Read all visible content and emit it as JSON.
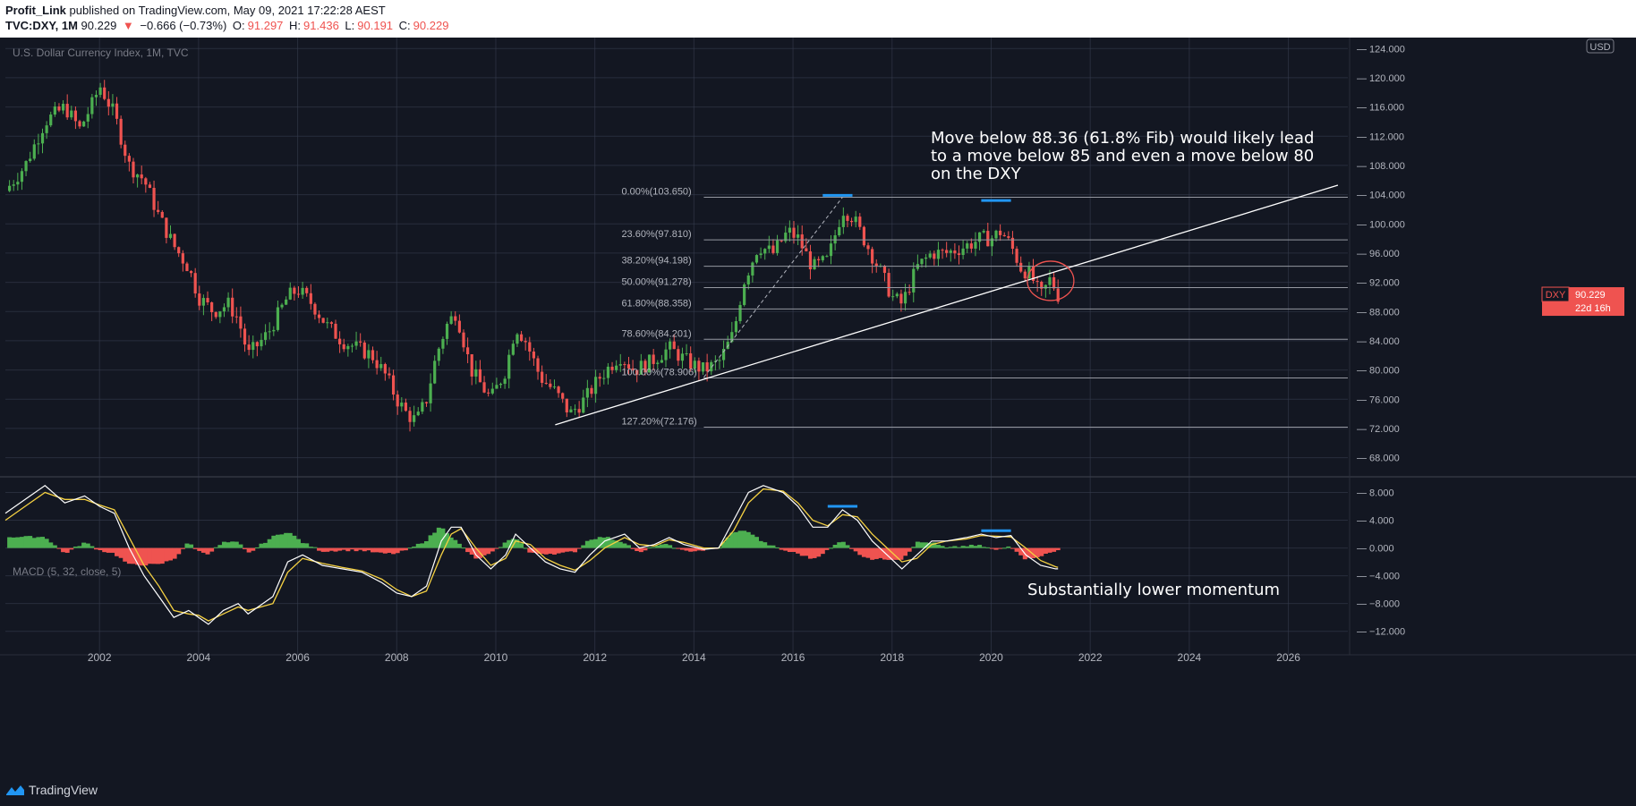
{
  "header": {
    "author": "Profit_Link",
    "published_text": "published on TradingView.com, May 09, 2021 17:22:28 AEST",
    "symbol_line": "TVC:DXY, 1M",
    "last": "90.229",
    "change_arrow": "▼",
    "change": "−0.666 (−0.73%)",
    "o_label": "O:",
    "o_value": "91.297",
    "h_label": "H:",
    "h_value": "91.436",
    "l_label": "L:",
    "l_value": "90.191",
    "c_label": "C:",
    "c_value": "90.229"
  },
  "footer": {
    "brand": "TradingView"
  },
  "colors": {
    "background": "#131722",
    "grid": "#363c4e",
    "up": "#26a69a",
    "up_candle": "#4caf50",
    "down": "#ef5350",
    "macd_line": "#ffffff",
    "signal_line": "#f5d142",
    "annotation_blue": "#2196f3",
    "price_tag": "#ef5350"
  },
  "chart_data": [
    {
      "type": "candlestick",
      "title": "U.S. Dollar Currency Index, 1M, TVC",
      "currency_badge": "USD",
      "price_tag": {
        "symbol": "DXY",
        "value": "90.229",
        "countdown": "22d 16h"
      },
      "x_ticks": [
        "2002",
        "2004",
        "2006",
        "2008",
        "2010",
        "2012",
        "2014",
        "2016",
        "2018",
        "2020",
        "2022",
        "2024",
        "2026"
      ],
      "y_ticks": [
        "124.000",
        "120.000",
        "116.000",
        "112.000",
        "108.000",
        "104.000",
        "100.000",
        "96.000",
        "92.000",
        "88.000",
        "84.000",
        "80.000",
        "76.000",
        "72.000",
        "68.000"
      ],
      "ylim": [
        65.5,
        125.5
      ],
      "xlim": [
        2000.1,
        2027.2
      ],
      "close_path": [
        [
          2000.1,
          104.5
        ],
        [
          2000.5,
          108
        ],
        [
          2000.9,
          114
        ],
        [
          2001.3,
          116
        ],
        [
          2001.6,
          113
        ],
        [
          2001.9,
          117
        ],
        [
          2002.0,
          119
        ],
        [
          2002.3,
          115
        ],
        [
          2002.6,
          108
        ],
        [
          2002.9,
          106
        ],
        [
          2003.2,
          101
        ],
        [
          2003.5,
          97
        ],
        [
          2003.8,
          94
        ],
        [
          2004.0,
          90
        ],
        [
          2004.3,
          88
        ],
        [
          2004.6,
          89
        ],
        [
          2004.8,
          87
        ],
        [
          2005.0,
          82
        ],
        [
          2005.4,
          85
        ],
        [
          2005.8,
          90
        ],
        [
          2006.0,
          91
        ],
        [
          2006.3,
          89
        ],
        [
          2006.6,
          86
        ],
        [
          2006.9,
          84
        ],
        [
          2007.2,
          83
        ],
        [
          2007.5,
          82
        ],
        [
          2007.8,
          79
        ],
        [
          2008.0,
          76
        ],
        [
          2008.2,
          74
        ],
        [
          2008.4,
          73
        ],
        [
          2008.6,
          76
        ],
        [
          2008.8,
          82
        ],
        [
          2009.0,
          86
        ],
        [
          2009.2,
          88
        ],
        [
          2009.5,
          80
        ],
        [
          2009.9,
          76
        ],
        [
          2010.2,
          80
        ],
        [
          2010.4,
          86
        ],
        [
          2010.6,
          84
        ],
        [
          2010.9,
          79
        ],
        [
          2011.2,
          77
        ],
        [
          2011.5,
          74
        ],
        [
          2011.8,
          76
        ],
        [
          2012.1,
          79
        ],
        [
          2012.5,
          82
        ],
        [
          2012.8,
          80
        ],
        [
          2013.1,
          81
        ],
        [
          2013.5,
          83
        ],
        [
          2013.9,
          81
        ],
        [
          2014.2,
          80
        ],
        [
          2014.5,
          81
        ],
        [
          2014.8,
          85
        ],
        [
          2015.0,
          92
        ],
        [
          2015.3,
          97
        ],
        [
          2015.6,
          96
        ],
        [
          2015.9,
          99
        ],
        [
          2016.1,
          98
        ],
        [
          2016.4,
          94
        ],
        [
          2016.7,
          95
        ],
        [
          2017.0,
          102
        ],
        [
          2017.2,
          101
        ],
        [
          2017.5,
          97
        ],
        [
          2017.8,
          93
        ],
        [
          2018.0,
          90
        ],
        [
          2018.2,
          89
        ],
        [
          2018.5,
          94
        ],
        [
          2018.8,
          96
        ],
        [
          2019.1,
          96
        ],
        [
          2019.5,
          97
        ],
        [
          2019.8,
          98
        ],
        [
          2020.0,
          98
        ],
        [
          2020.2,
          99
        ],
        [
          2020.4,
          97
        ],
        [
          2020.6,
          94
        ],
        [
          2020.8,
          93
        ],
        [
          2021.0,
          90
        ],
        [
          2021.2,
          92.5
        ],
        [
          2021.35,
          90.229
        ]
      ],
      "trendline": {
        "from": [
          2011.2,
          72.5
        ],
        "to": [
          2027.0,
          105.3
        ]
      },
      "dashed_fib_leg": {
        "from": [
          2014.2,
          79.0
        ],
        "to": [
          2017.0,
          103.65
        ]
      },
      "fib_levels": [
        {
          "label": "0.00%(103.650)",
          "value": 103.65
        },
        {
          "label": "23.60%(97.810)",
          "value": 97.81
        },
        {
          "label": "38.20%(94.198)",
          "value": 94.198
        },
        {
          "label": "50.00%(91.278)",
          "value": 91.278
        },
        {
          "label": "61.80%(88.358)",
          "value": 88.358
        },
        {
          "label": "78.60%(84.201)",
          "value": 84.201
        },
        {
          "label": "100.00%(78.906)",
          "value": 78.906
        },
        {
          "label": "127.20%(72.176)",
          "value": 72.176
        }
      ],
      "peak_markers": [
        {
          "x": [
            2016.6,
            2017.2
          ],
          "y": 103.9
        },
        {
          "x": [
            2019.8,
            2020.4
          ],
          "y": 103.2
        }
      ],
      "circle": {
        "x": 2021.2,
        "y": 92.2
      },
      "annotation": "Move below 88.36 (61.8% Fib) would likely lead\nto a move below 85 and even a move below 80\non the DXY"
    },
    {
      "type": "macd",
      "title": "MACD (5, 32, close, 5)",
      "y_ticks": [
        "8.000",
        "4.000",
        "0.000",
        "−4.000",
        "−8.000",
        "−12.000"
      ],
      "ylim": [
        -13.2,
        10.0
      ],
      "macd": [
        [
          2000.1,
          5
        ],
        [
          2000.5,
          7
        ],
        [
          2000.9,
          9
        ],
        [
          2001.3,
          6.5
        ],
        [
          2001.7,
          7.5
        ],
        [
          2002.0,
          6
        ],
        [
          2002.3,
          5
        ],
        [
          2002.6,
          0
        ],
        [
          2002.9,
          -4
        ],
        [
          2003.2,
          -7
        ],
        [
          2003.5,
          -10
        ],
        [
          2003.8,
          -9
        ],
        [
          2004.0,
          -10
        ],
        [
          2004.2,
          -11
        ],
        [
          2004.5,
          -9
        ],
        [
          2004.8,
          -8
        ],
        [
          2005.0,
          -9.5
        ],
        [
          2005.5,
          -7
        ],
        [
          2005.8,
          -2
        ],
        [
          2006.1,
          -1
        ],
        [
          2006.5,
          -2.5
        ],
        [
          2006.9,
          -3
        ],
        [
          2007.3,
          -3.5
        ],
        [
          2007.7,
          -5
        ],
        [
          2008.0,
          -6.5
        ],
        [
          2008.3,
          -7
        ],
        [
          2008.6,
          -5.5
        ],
        [
          2008.9,
          1
        ],
        [
          2009.1,
          3
        ],
        [
          2009.3,
          3
        ],
        [
          2009.6,
          -1
        ],
        [
          2009.9,
          -3
        ],
        [
          2010.2,
          -1
        ],
        [
          2010.4,
          2
        ],
        [
          2010.7,
          0
        ],
        [
          2011.0,
          -2
        ],
        [
          2011.3,
          -3
        ],
        [
          2011.6,
          -3.5
        ],
        [
          2011.9,
          -1
        ],
        [
          2012.2,
          1
        ],
        [
          2012.6,
          2
        ],
        [
          2012.9,
          0
        ],
        [
          2013.2,
          0.5
        ],
        [
          2013.5,
          1.5
        ],
        [
          2013.8,
          0.5
        ],
        [
          2014.2,
          -0.2
        ],
        [
          2014.5,
          0
        ],
        [
          2014.8,
          4
        ],
        [
          2015.1,
          8
        ],
        [
          2015.4,
          9
        ],
        [
          2015.8,
          8
        ],
        [
          2016.1,
          6
        ],
        [
          2016.4,
          3
        ],
        [
          2016.7,
          3
        ],
        [
          2017.0,
          5.5
        ],
        [
          2017.3,
          4
        ],
        [
          2017.6,
          1
        ],
        [
          2017.9,
          -1
        ],
        [
          2018.2,
          -3
        ],
        [
          2018.5,
          -1
        ],
        [
          2018.8,
          1
        ],
        [
          2019.1,
          1
        ],
        [
          2019.5,
          1.5
        ],
        [
          2019.8,
          2
        ],
        [
          2020.1,
          1.5
        ],
        [
          2020.4,
          1.8
        ],
        [
          2020.7,
          -1
        ],
        [
          2021.0,
          -2.5
        ],
        [
          2021.3,
          -3
        ],
        [
          2021.35,
          -3
        ]
      ],
      "signal": [
        [
          2000.1,
          4
        ],
        [
          2000.5,
          6
        ],
        [
          2000.9,
          8
        ],
        [
          2001.3,
          7
        ],
        [
          2001.7,
          7
        ],
        [
          2002.0,
          6.2
        ],
        [
          2002.3,
          5.5
        ],
        [
          2002.6,
          1.5
        ],
        [
          2002.9,
          -2.5
        ],
        [
          2003.2,
          -5.5
        ],
        [
          2003.5,
          -9
        ],
        [
          2003.8,
          -9.5
        ],
        [
          2004.0,
          -9.7
        ],
        [
          2004.2,
          -10.5
        ],
        [
          2004.5,
          -9.5
        ],
        [
          2004.8,
          -8.5
        ],
        [
          2005.0,
          -9
        ],
        [
          2005.5,
          -8
        ],
        [
          2005.8,
          -3.5
        ],
        [
          2006.1,
          -1.5
        ],
        [
          2006.5,
          -2.2
        ],
        [
          2006.9,
          -2.8
        ],
        [
          2007.3,
          -3.3
        ],
        [
          2007.7,
          -4.5
        ],
        [
          2008.0,
          -6
        ],
        [
          2008.3,
          -7
        ],
        [
          2008.6,
          -6.2
        ],
        [
          2008.9,
          -1
        ],
        [
          2009.1,
          2
        ],
        [
          2009.3,
          2.8
        ],
        [
          2009.6,
          0
        ],
        [
          2009.9,
          -2.5
        ],
        [
          2010.2,
          -1.5
        ],
        [
          2010.4,
          1
        ],
        [
          2010.7,
          0.5
        ],
        [
          2011.0,
          -1.5
        ],
        [
          2011.3,
          -2.5
        ],
        [
          2011.6,
          -3.2
        ],
        [
          2011.9,
          -1.8
        ],
        [
          2012.2,
          0
        ],
        [
          2012.6,
          1.5
        ],
        [
          2012.9,
          0.5
        ],
        [
          2013.2,
          0.3
        ],
        [
          2013.5,
          1.2
        ],
        [
          2013.8,
          0.8
        ],
        [
          2014.2,
          0
        ],
        [
          2014.5,
          0
        ],
        [
          2014.8,
          2.5
        ],
        [
          2015.1,
          6.5
        ],
        [
          2015.4,
          8.5
        ],
        [
          2015.8,
          8.2
        ],
        [
          2016.1,
          6.5
        ],
        [
          2016.4,
          4
        ],
        [
          2016.7,
          3.2
        ],
        [
          2017.0,
          4.8
        ],
        [
          2017.3,
          4.5
        ],
        [
          2017.6,
          2
        ],
        [
          2017.9,
          0
        ],
        [
          2018.2,
          -2
        ],
        [
          2018.5,
          -1.5
        ],
        [
          2018.8,
          0.5
        ],
        [
          2019.1,
          1
        ],
        [
          2019.5,
          1.3
        ],
        [
          2019.8,
          1.8
        ],
        [
          2020.1,
          1.7
        ],
        [
          2020.4,
          1.6
        ],
        [
          2020.7,
          0
        ],
        [
          2021.0,
          -1.8
        ],
        [
          2021.3,
          -2.7
        ],
        [
          2021.35,
          -2.8
        ]
      ],
      "peak_markers": [
        {
          "x": [
            2016.7,
            2017.3
          ],
          "y": 6.0
        },
        {
          "x": [
            2019.8,
            2020.4
          ],
          "y": 2.5
        }
      ],
      "annotation": "Substantially lower momentum"
    }
  ]
}
